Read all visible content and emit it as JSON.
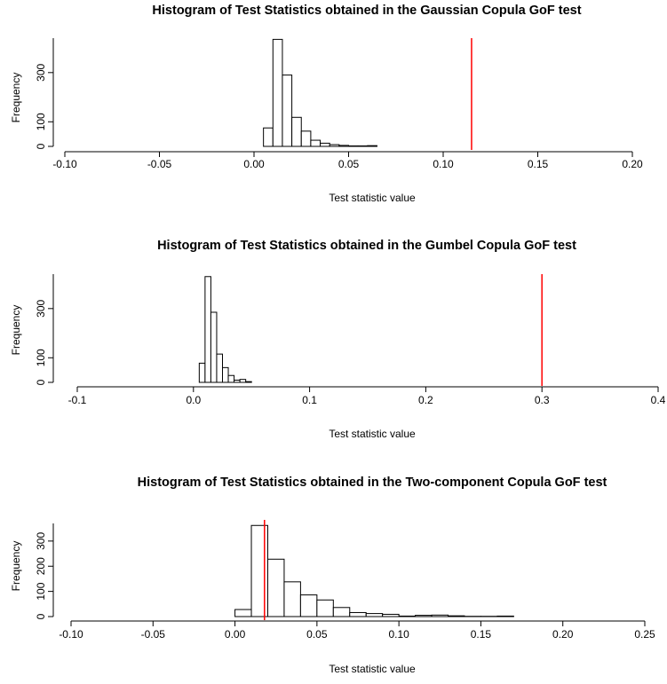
{
  "chart_data": [
    {
      "type": "bar",
      "title": "Histogram of Test Statistics obtained in the Gaussian Copula GoF test",
      "xlabel": "Test statistic value",
      "ylabel": "Frequency",
      "xlim": [
        -0.1,
        0.2
      ],
      "ylim": [
        0,
        440
      ],
      "xticks": [
        -0.1,
        -0.05,
        0.0,
        0.05,
        0.1,
        0.15,
        0.2
      ],
      "xtick_labels": [
        "-0.10",
        "-0.05",
        "0.00",
        "0.05",
        "0.10",
        "0.15",
        "0.20"
      ],
      "yticks": [
        0,
        100,
        300
      ],
      "ytick_labels": [
        "0",
        "100",
        "300"
      ],
      "bin_edges": [
        0.005,
        0.01,
        0.015,
        0.02,
        0.025,
        0.03,
        0.035,
        0.04,
        0.045,
        0.05,
        0.055,
        0.06,
        0.065
      ],
      "values": [
        75,
        435,
        290,
        118,
        62,
        25,
        13,
        7,
        4,
        2,
        2,
        3
      ],
      "vline": {
        "x": 0.115,
        "color": "#ff0000"
      }
    },
    {
      "type": "bar",
      "title": "Histogram of Test Statistics obtained in the Gumbel Copula GoF test",
      "xlabel": "Test statistic value",
      "ylabel": "Frequency",
      "xlim": [
        -0.1,
        0.4
      ],
      "ylim": [
        0,
        440
      ],
      "xticks": [
        -0.1,
        0.0,
        0.1,
        0.2,
        0.3,
        0.4
      ],
      "xtick_labels": [
        "-0.1",
        "0.0",
        "0.1",
        "0.2",
        "0.3",
        "0.4"
      ],
      "yticks": [
        0,
        100,
        300
      ],
      "ytick_labels": [
        "0",
        "100",
        "300"
      ],
      "bin_edges": [
        0.005,
        0.01,
        0.015,
        0.02,
        0.025,
        0.03,
        0.035,
        0.04,
        0.045,
        0.05
      ],
      "values": [
        78,
        430,
        285,
        115,
        60,
        28,
        9,
        12,
        3
      ],
      "vline": {
        "x": 0.3,
        "color": "#ff0000"
      }
    },
    {
      "type": "bar",
      "title": "Histogram of Test Statistics obtained in the Two-component Copula GoF test",
      "xlabel": "Test statistic value",
      "ylabel": "Frequency",
      "xlim": [
        -0.1,
        0.25
      ],
      "ylim": [
        0,
        370
      ],
      "xticks": [
        -0.1,
        -0.05,
        0.0,
        0.05,
        0.1,
        0.15,
        0.2,
        0.25
      ],
      "xtick_labels": [
        "-0.10",
        "-0.05",
        "0.00",
        "0.05",
        "0.10",
        "0.15",
        "0.20",
        "0.25"
      ],
      "yticks": [
        0,
        100,
        200,
        300
      ],
      "ytick_labels": [
        "0",
        "100",
        "200",
        "300"
      ],
      "bin_edges": [
        0.0,
        0.01,
        0.02,
        0.03,
        0.04,
        0.05,
        0.06,
        0.07,
        0.08,
        0.09,
        0.1,
        0.11,
        0.12,
        0.13,
        0.14,
        0.15,
        0.16,
        0.17
      ],
      "values": [
        28,
        362,
        228,
        138,
        86,
        66,
        36,
        16,
        12,
        9,
        2,
        5,
        6,
        3,
        1,
        1,
        2
      ],
      "vline": {
        "x": 0.018,
        "color": "#ff0000"
      }
    }
  ]
}
